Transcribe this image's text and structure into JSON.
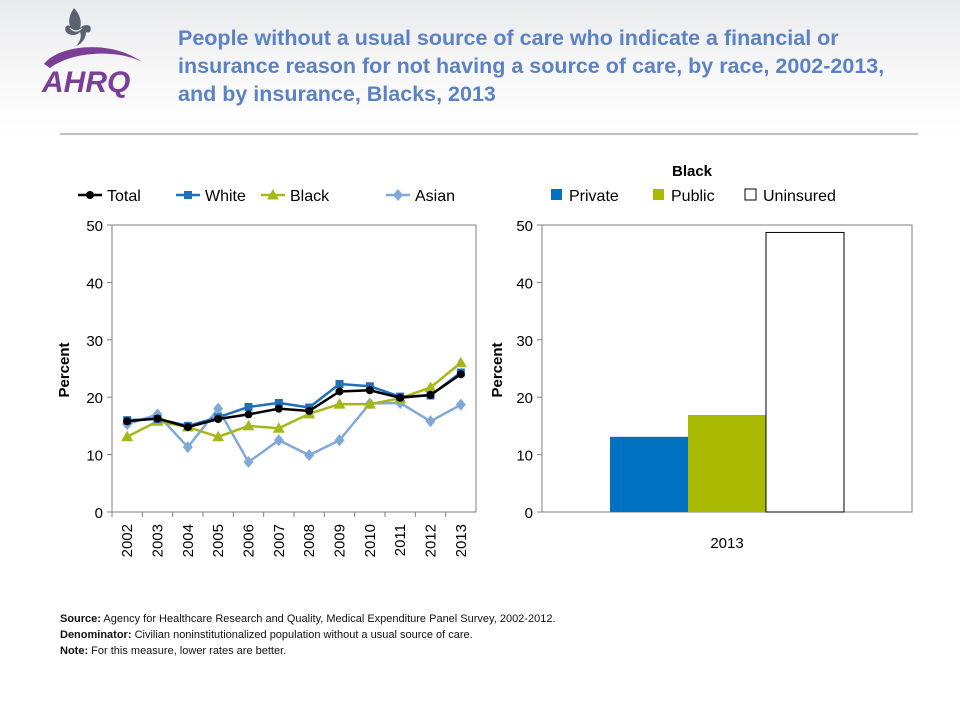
{
  "logo": {
    "text": "AHRQ"
  },
  "title": "People without a usual source of care who indicate a financial or insurance reason for not having a source of care, by race, 2002-2013, and by insurance, Blacks, 2013",
  "footnotes": {
    "source_label": "Source:",
    "source_text": "Agency for Healthcare Research and Quality, Medical Expenditure Panel Survey, 2002-2012.",
    "denominator_label": "Denominator:",
    "denominator_text": "Civilian noninstitutionalized population without a usual source of care.",
    "note_label": "Note:",
    "note_text": "For this measure, lower rates are better."
  },
  "colors": {
    "title": "#5b82c4",
    "total": "#000000",
    "white": "#1f6fba",
    "black": "#a5b817",
    "asian": "#7fa9d9",
    "private": "#0070c0",
    "public": "#a9b800",
    "uninsured": "#ffffff"
  },
  "chart_data": [
    {
      "type": "line",
      "title": "",
      "xlabel": "",
      "ylabel": "Percent",
      "ylim": [
        0,
        50
      ],
      "yticks": [
        0,
        10,
        20,
        30,
        40,
        50
      ],
      "grid": false,
      "legend_position": "top",
      "x": [
        "2002",
        "2003",
        "2004",
        "2005",
        "2006",
        "2007",
        "2008",
        "2009",
        "2010",
        "2011",
        "2012",
        "2013"
      ],
      "series": [
        {
          "name": "Total",
          "marker": "circle",
          "values": [
            15.8,
            16.3,
            14.8,
            16.2,
            17.0,
            18.0,
            17.6,
            21.0,
            21.2,
            19.9,
            20.4,
            24.0
          ]
        },
        {
          "name": "White",
          "marker": "square",
          "values": [
            16.0,
            16.2,
            15.0,
            16.5,
            18.3,
            19.0,
            18.2,
            22.3,
            21.9,
            20.1,
            20.3,
            24.3
          ]
        },
        {
          "name": "Black",
          "marker": "triangle",
          "values": [
            13.1,
            15.8,
            14.8,
            13.1,
            15.0,
            14.6,
            17.1,
            18.8,
            18.8,
            19.8,
            21.7,
            26.0
          ]
        },
        {
          "name": "Asian",
          "marker": "diamond",
          "values": [
            15.3,
            17.0,
            11.3,
            18.0,
            8.7,
            12.5,
            9.9,
            12.5,
            18.9,
            19.0,
            15.8,
            18.7
          ]
        }
      ]
    },
    {
      "type": "bar",
      "title": "Black",
      "xlabel": "",
      "ylabel": "Percent",
      "ylim": [
        0,
        50
      ],
      "yticks": [
        0,
        10,
        20,
        30,
        40,
        50
      ],
      "grid": false,
      "legend_position": "top",
      "categories": [
        "2013"
      ],
      "series": [
        {
          "name": "Private",
          "values": [
            13.1
          ]
        },
        {
          "name": "Public",
          "values": [
            16.9
          ]
        },
        {
          "name": "Uninsured",
          "values": [
            48.7
          ]
        }
      ]
    }
  ]
}
